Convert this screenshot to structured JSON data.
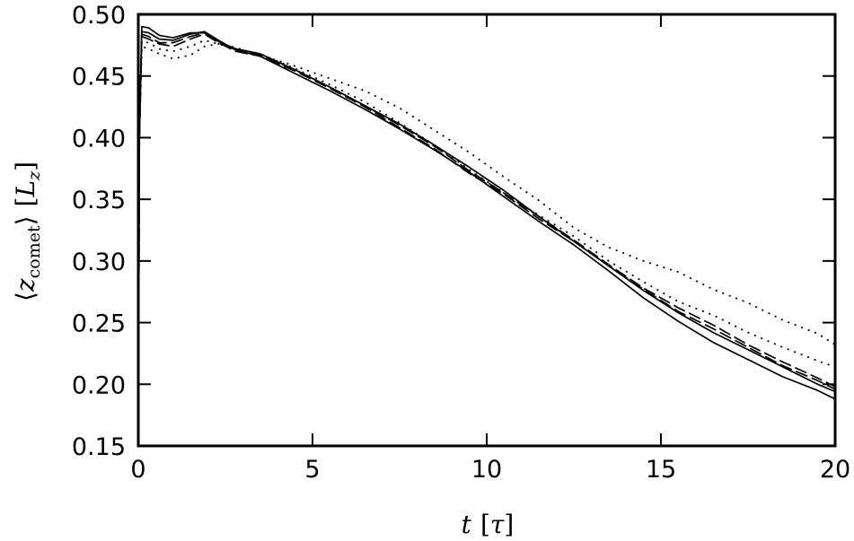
{
  "chart_data": {
    "type": "line",
    "xlabel": {
      "var": "t",
      "unit_open": "[",
      "unit": "τ",
      "unit_close": "]"
    },
    "ylabel": {
      "open": "⟨",
      "var": "z",
      "sub": "comet",
      "close": "⟩",
      "unit_open": "[",
      "unit": "L",
      "unit_sub": "z",
      "unit_close": "]"
    },
    "xlim": [
      0,
      20
    ],
    "ylim": [
      0.15,
      0.5
    ],
    "xticks": [
      "0",
      "5",
      "10",
      "15",
      "20"
    ],
    "yticks": [
      "0.15",
      "0.20",
      "0.25",
      "0.30",
      "0.35",
      "0.40",
      "0.45",
      "0.50"
    ],
    "grid": false,
    "legend": "none",
    "series": [
      {
        "style": "solid",
        "x": [
          0,
          0.03,
          0.1,
          0.3,
          0.6,
          1.0,
          1.5,
          1.9,
          2.3,
          2.8,
          3.5,
          4.5,
          5.5,
          6.5,
          7.5,
          8.5,
          9.5,
          10.5,
          11.5,
          12.5,
          13.5,
          14.5,
          15.5,
          16.5,
          17.5,
          18.5,
          19.5,
          20
        ],
        "y": [
          0.15,
          0.4,
          0.49,
          0.489,
          0.483,
          0.481,
          0.485,
          0.485,
          0.478,
          0.472,
          0.468,
          0.455,
          0.441,
          0.426,
          0.411,
          0.394,
          0.376,
          0.357,
          0.336,
          0.316,
          0.296,
          0.276,
          0.258,
          0.242,
          0.228,
          0.214,
          0.2,
          0.194
        ]
      },
      {
        "style": "solid",
        "x": [
          0,
          0.03,
          0.1,
          0.3,
          0.6,
          1.0,
          1.5,
          1.9,
          2.3,
          2.8,
          3.5,
          4.5,
          5.5,
          6.5,
          7.5,
          8.5,
          9.5,
          10.5,
          11.5,
          12.5,
          13.5,
          14.5,
          15.5,
          16.5,
          17.5,
          18.5,
          19.5,
          20
        ],
        "y": [
          0.15,
          0.4,
          0.486,
          0.485,
          0.48,
          0.479,
          0.484,
          0.486,
          0.479,
          0.471,
          0.466,
          0.452,
          0.438,
          0.423,
          0.407,
          0.39,
          0.372,
          0.352,
          0.332,
          0.313,
          0.292,
          0.27,
          0.251,
          0.234,
          0.22,
          0.206,
          0.195,
          0.188
        ]
      },
      {
        "style": "dashed",
        "x": [
          0,
          0.03,
          0.1,
          0.3,
          0.6,
          1.0,
          1.5,
          1.9,
          2.3,
          2.8,
          3.5,
          4.5,
          5.5,
          6.5,
          7.5,
          8.5,
          9.5,
          10.5,
          11.5,
          12.5,
          13.5,
          14.5,
          15.5,
          16.5,
          17.5,
          18.5,
          19.5,
          20
        ],
        "y": [
          0.15,
          0.4,
          0.484,
          0.482,
          0.477,
          0.477,
          0.482,
          0.485,
          0.478,
          0.471,
          0.467,
          0.455,
          0.441,
          0.426,
          0.41,
          0.393,
          0.373,
          0.355,
          0.336,
          0.317,
          0.297,
          0.278,
          0.262,
          0.248,
          0.232,
          0.218,
          0.205,
          0.198
        ]
      },
      {
        "style": "dashed",
        "x": [
          0,
          0.03,
          0.1,
          0.3,
          0.6,
          1.0,
          1.5,
          1.9,
          2.3,
          2.8,
          3.5,
          4.5,
          5.5,
          6.5,
          7.5,
          8.5,
          9.5,
          10.5,
          11.5,
          12.5,
          13.5,
          14.5,
          15.5,
          16.5,
          17.5,
          18.5,
          19.5,
          20
        ],
        "y": [
          0.15,
          0.4,
          0.482,
          0.48,
          0.476,
          0.474,
          0.48,
          0.484,
          0.477,
          0.47,
          0.466,
          0.454,
          0.44,
          0.425,
          0.408,
          0.391,
          0.371,
          0.354,
          0.334,
          0.316,
          0.296,
          0.277,
          0.259,
          0.245,
          0.23,
          0.215,
          0.203,
          0.196
        ]
      },
      {
        "style": "dotted",
        "x": [
          0,
          0.03,
          0.1,
          0.3,
          0.6,
          1.0,
          1.5,
          1.9,
          2.3,
          2.8,
          3.5,
          4.5,
          5.5,
          6.5,
          7.5,
          8.5,
          9.5,
          10.5,
          11.5,
          12.5,
          13.5,
          14.5,
          15.5,
          16.5,
          17.5,
          18.5,
          19.5,
          20
        ],
        "y": [
          0.15,
          0.4,
          0.478,
          0.477,
          0.472,
          0.47,
          0.474,
          0.479,
          0.476,
          0.472,
          0.468,
          0.456,
          0.443,
          0.429,
          0.412,
          0.394,
          0.374,
          0.355,
          0.337,
          0.32,
          0.3,
          0.283,
          0.267,
          0.256,
          0.242,
          0.23,
          0.219,
          0.214
        ]
      },
      {
        "style": "dotted",
        "x": [
          0,
          0.03,
          0.1,
          0.3,
          0.6,
          1.0,
          1.5,
          1.9,
          2.3,
          2.8,
          3.5,
          4.5,
          5.5,
          6.5,
          7.5,
          8.5,
          9.5,
          10.5,
          11.5,
          12.5,
          13.5,
          14.5,
          15.5,
          16.5,
          17.5,
          18.5,
          19.5,
          20
        ],
        "y": [
          0.15,
          0.4,
          0.474,
          0.472,
          0.468,
          0.464,
          0.467,
          0.474,
          0.476,
          0.473,
          0.467,
          0.458,
          0.448,
          0.438,
          0.424,
          0.406,
          0.388,
          0.368,
          0.349,
          0.327,
          0.311,
          0.3,
          0.291,
          0.277,
          0.266,
          0.252,
          0.241,
          0.232
        ]
      }
    ]
  }
}
